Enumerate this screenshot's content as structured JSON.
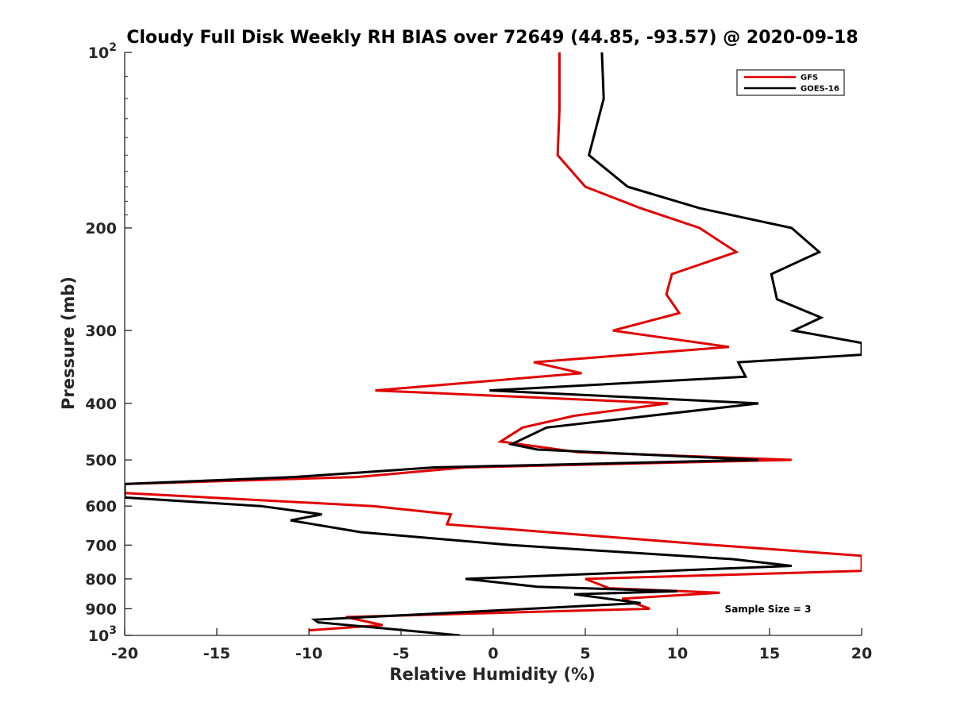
{
  "chart_data": {
    "type": "line",
    "title": "Cloudy Full Disk Weekly RH BIAS over 72649 (44.85, -93.57) @ 2020-09-18",
    "xlabel": "Relative Humidity (%)",
    "ylabel": "Pressure (mb)",
    "xlim": [
      -20,
      20
    ],
    "ylim": [
      100,
      1000
    ],
    "y_scale": "log",
    "y_reversed": true,
    "grid": false,
    "legend_position": "top-right",
    "x_ticks": [
      {
        "value": -20,
        "label": "-20"
      },
      {
        "value": -15,
        "label": "-15"
      },
      {
        "value": -10,
        "label": "-10"
      },
      {
        "value": -5,
        "label": "-5"
      },
      {
        "value": 0,
        "label": "0"
      },
      {
        "value": 5,
        "label": "5"
      },
      {
        "value": 10,
        "label": "10"
      },
      {
        "value": 15,
        "label": "15"
      },
      {
        "value": 20,
        "label": "20"
      }
    ],
    "y_ticks": [
      {
        "value": 100,
        "base": "10",
        "exp": "2"
      },
      {
        "value": 200,
        "label": "200"
      },
      {
        "value": 300,
        "label": "300"
      },
      {
        "value": 400,
        "label": "400"
      },
      {
        "value": 500,
        "label": "500"
      },
      {
        "value": 600,
        "label": "600"
      },
      {
        "value": 700,
        "label": "700"
      },
      {
        "value": 800,
        "label": "800"
      },
      {
        "value": 900,
        "label": "900"
      },
      {
        "value": 1000,
        "base": "10",
        "exp": "3"
      }
    ],
    "annotation": "Sample Size = 3",
    "series": [
      {
        "name": "GFS",
        "color": "#e00000",
        "points": [
          {
            "x": 3.6,
            "y": 100
          },
          {
            "x": 3.6,
            "y": 125
          },
          {
            "x": 3.5,
            "y": 150
          },
          {
            "x": 5.0,
            "y": 170
          },
          {
            "x": 8.0,
            "y": 185
          },
          {
            "x": 11.2,
            "y": 200
          },
          {
            "x": 13.2,
            "y": 220
          },
          {
            "x": 9.7,
            "y": 240
          },
          {
            "x": 9.4,
            "y": 260
          },
          {
            "x": 10.1,
            "y": 280
          },
          {
            "x": 6.5,
            "y": 300
          },
          {
            "x": 12.8,
            "y": 320
          },
          {
            "x": 2.2,
            "y": 340
          },
          {
            "x": 4.8,
            "y": 355
          },
          {
            "x": -6.4,
            "y": 380
          },
          {
            "x": 9.5,
            "y": 400
          },
          {
            "x": 4.4,
            "y": 420
          },
          {
            "x": 1.6,
            "y": 440
          },
          {
            "x": 0.4,
            "y": 465
          },
          {
            "x": 4.6,
            "y": 485
          },
          {
            "x": 16.2,
            "y": 500
          },
          {
            "x": -1.5,
            "y": 515
          },
          {
            "x": -7.4,
            "y": 535
          },
          {
            "x": -20.0,
            "y": 550
          },
          {
            "x": -20.0,
            "y": 570
          },
          {
            "x": -6.5,
            "y": 600
          },
          {
            "x": -2.3,
            "y": 620
          },
          {
            "x": -2.5,
            "y": 645
          },
          {
            "x": 12.0,
            "y": 700
          },
          {
            "x": 20.0,
            "y": 730
          },
          {
            "x": 20.0,
            "y": 775
          },
          {
            "x": 5.0,
            "y": 800
          },
          {
            "x": 6.3,
            "y": 830
          },
          {
            "x": 12.3,
            "y": 845
          },
          {
            "x": 7.0,
            "y": 865
          },
          {
            "x": 8.5,
            "y": 900
          },
          {
            "x": -8.0,
            "y": 930
          },
          {
            "x": -6.0,
            "y": 960
          },
          {
            "x": -10.0,
            "y": 980
          }
        ]
      },
      {
        "name": "GOES-16",
        "color": "#000000",
        "points": [
          {
            "x": 5.9,
            "y": 100
          },
          {
            "x": 6.0,
            "y": 120
          },
          {
            "x": 5.2,
            "y": 150
          },
          {
            "x": 7.3,
            "y": 170
          },
          {
            "x": 11.2,
            "y": 185
          },
          {
            "x": 16.2,
            "y": 200
          },
          {
            "x": 17.7,
            "y": 220
          },
          {
            "x": 15.1,
            "y": 240
          },
          {
            "x": 15.4,
            "y": 265
          },
          {
            "x": 17.8,
            "y": 285
          },
          {
            "x": 16.3,
            "y": 300
          },
          {
            "x": 20.0,
            "y": 315
          },
          {
            "x": 20.0,
            "y": 330
          },
          {
            "x": 13.3,
            "y": 340
          },
          {
            "x": 13.7,
            "y": 360
          },
          {
            "x": -0.2,
            "y": 380
          },
          {
            "x": 14.4,
            "y": 400
          },
          {
            "x": 2.9,
            "y": 440
          },
          {
            "x": 1.0,
            "y": 470
          },
          {
            "x": 2.4,
            "y": 480
          },
          {
            "x": 14.4,
            "y": 500
          },
          {
            "x": -3.2,
            "y": 515
          },
          {
            "x": -10.8,
            "y": 535
          },
          {
            "x": -20.0,
            "y": 550
          },
          {
            "x": -20.0,
            "y": 580
          },
          {
            "x": -12.6,
            "y": 600
          },
          {
            "x": -9.3,
            "y": 620
          },
          {
            "x": -11.0,
            "y": 635
          },
          {
            "x": -7.2,
            "y": 665
          },
          {
            "x": 1.0,
            "y": 700
          },
          {
            "x": 13.0,
            "y": 740
          },
          {
            "x": 16.2,
            "y": 760
          },
          {
            "x": -1.5,
            "y": 800
          },
          {
            "x": 2.4,
            "y": 825
          },
          {
            "x": 10.0,
            "y": 840
          },
          {
            "x": 4.4,
            "y": 850
          },
          {
            "x": 8.0,
            "y": 880
          },
          {
            "x": -9.7,
            "y": 940
          },
          {
            "x": -9.5,
            "y": 950
          },
          {
            "x": -1.8,
            "y": 1000
          }
        ]
      }
    ]
  }
}
